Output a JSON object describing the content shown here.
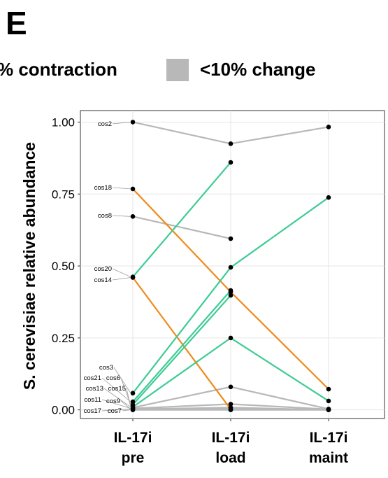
{
  "panel_letter": "E",
  "legend": {
    "items": [
      {
        "label": "% contraction",
        "color": "#ef8a1a"
      },
      {
        "label": "<10% change",
        "color": "#b8b8b8"
      }
    ]
  },
  "chart_data": {
    "type": "line",
    "title": "",
    "xlabel": "",
    "ylabel": "S. cerevisiae relative abundance",
    "categories": [
      "IL-17i pre",
      "IL-17i load",
      "IL-17i maint"
    ],
    "x_tick_lines": [
      [
        "IL-17i",
        "pre"
      ],
      [
        "IL-17i",
        "load"
      ],
      [
        "IL-17i",
        "maint"
      ]
    ],
    "ylim": [
      -0.03,
      1.04
    ],
    "yticks": [
      0.0,
      0.25,
      0.5,
      0.75,
      1.0
    ],
    "ytick_labels": [
      "0.00",
      "0.25",
      "0.50",
      "0.75",
      "1.00"
    ],
    "grid": true,
    "colors": {
      "contraction": "#ef8a1a",
      "expansion": "#3dcc94",
      "change": "#b8b8b8"
    },
    "series": [
      {
        "name": "cos2",
        "group": "change",
        "values": [
          1.0,
          0.925,
          0.983
        ]
      },
      {
        "name": "cos18",
        "group": "contraction",
        "values": [
          0.768,
          0.41,
          0.072
        ]
      },
      {
        "name": "cos8",
        "group": "change",
        "values": [
          0.672,
          0.595,
          null
        ]
      },
      {
        "name": "cos20",
        "group": "expansion",
        "values": [
          0.462,
          0.86,
          null
        ]
      },
      {
        "name": "cos14",
        "group": "contraction",
        "values": [
          0.46,
          0.002,
          null
        ]
      },
      {
        "name": "cos3",
        "group": "expansion",
        "values": [
          0.058,
          0.495,
          0.738
        ]
      },
      {
        "name": "cos21",
        "group": "expansion",
        "values": [
          0.028,
          0.415,
          null
        ]
      },
      {
        "name": "cos6",
        "group": "expansion",
        "values": [
          0.018,
          0.398,
          null
        ]
      },
      {
        "name": "cos13",
        "group": "expansion",
        "values": [
          0.01,
          0.25,
          0.031
        ]
      },
      {
        "name": "cos15",
        "group": "change",
        "values": [
          0.008,
          0.08,
          0.003
        ]
      },
      {
        "name": "cos11",
        "group": "change",
        "values": [
          0.005,
          0.02,
          0.002
        ]
      },
      {
        "name": "cos9",
        "group": "change",
        "values": [
          0.002,
          0.008,
          0.0
        ]
      },
      {
        "name": "cos17",
        "group": "change",
        "values": [
          0.003,
          0.003,
          0.001
        ]
      },
      {
        "name": "cos7",
        "group": "change",
        "values": [
          0.0,
          0.0,
          0.0
        ]
      }
    ]
  }
}
